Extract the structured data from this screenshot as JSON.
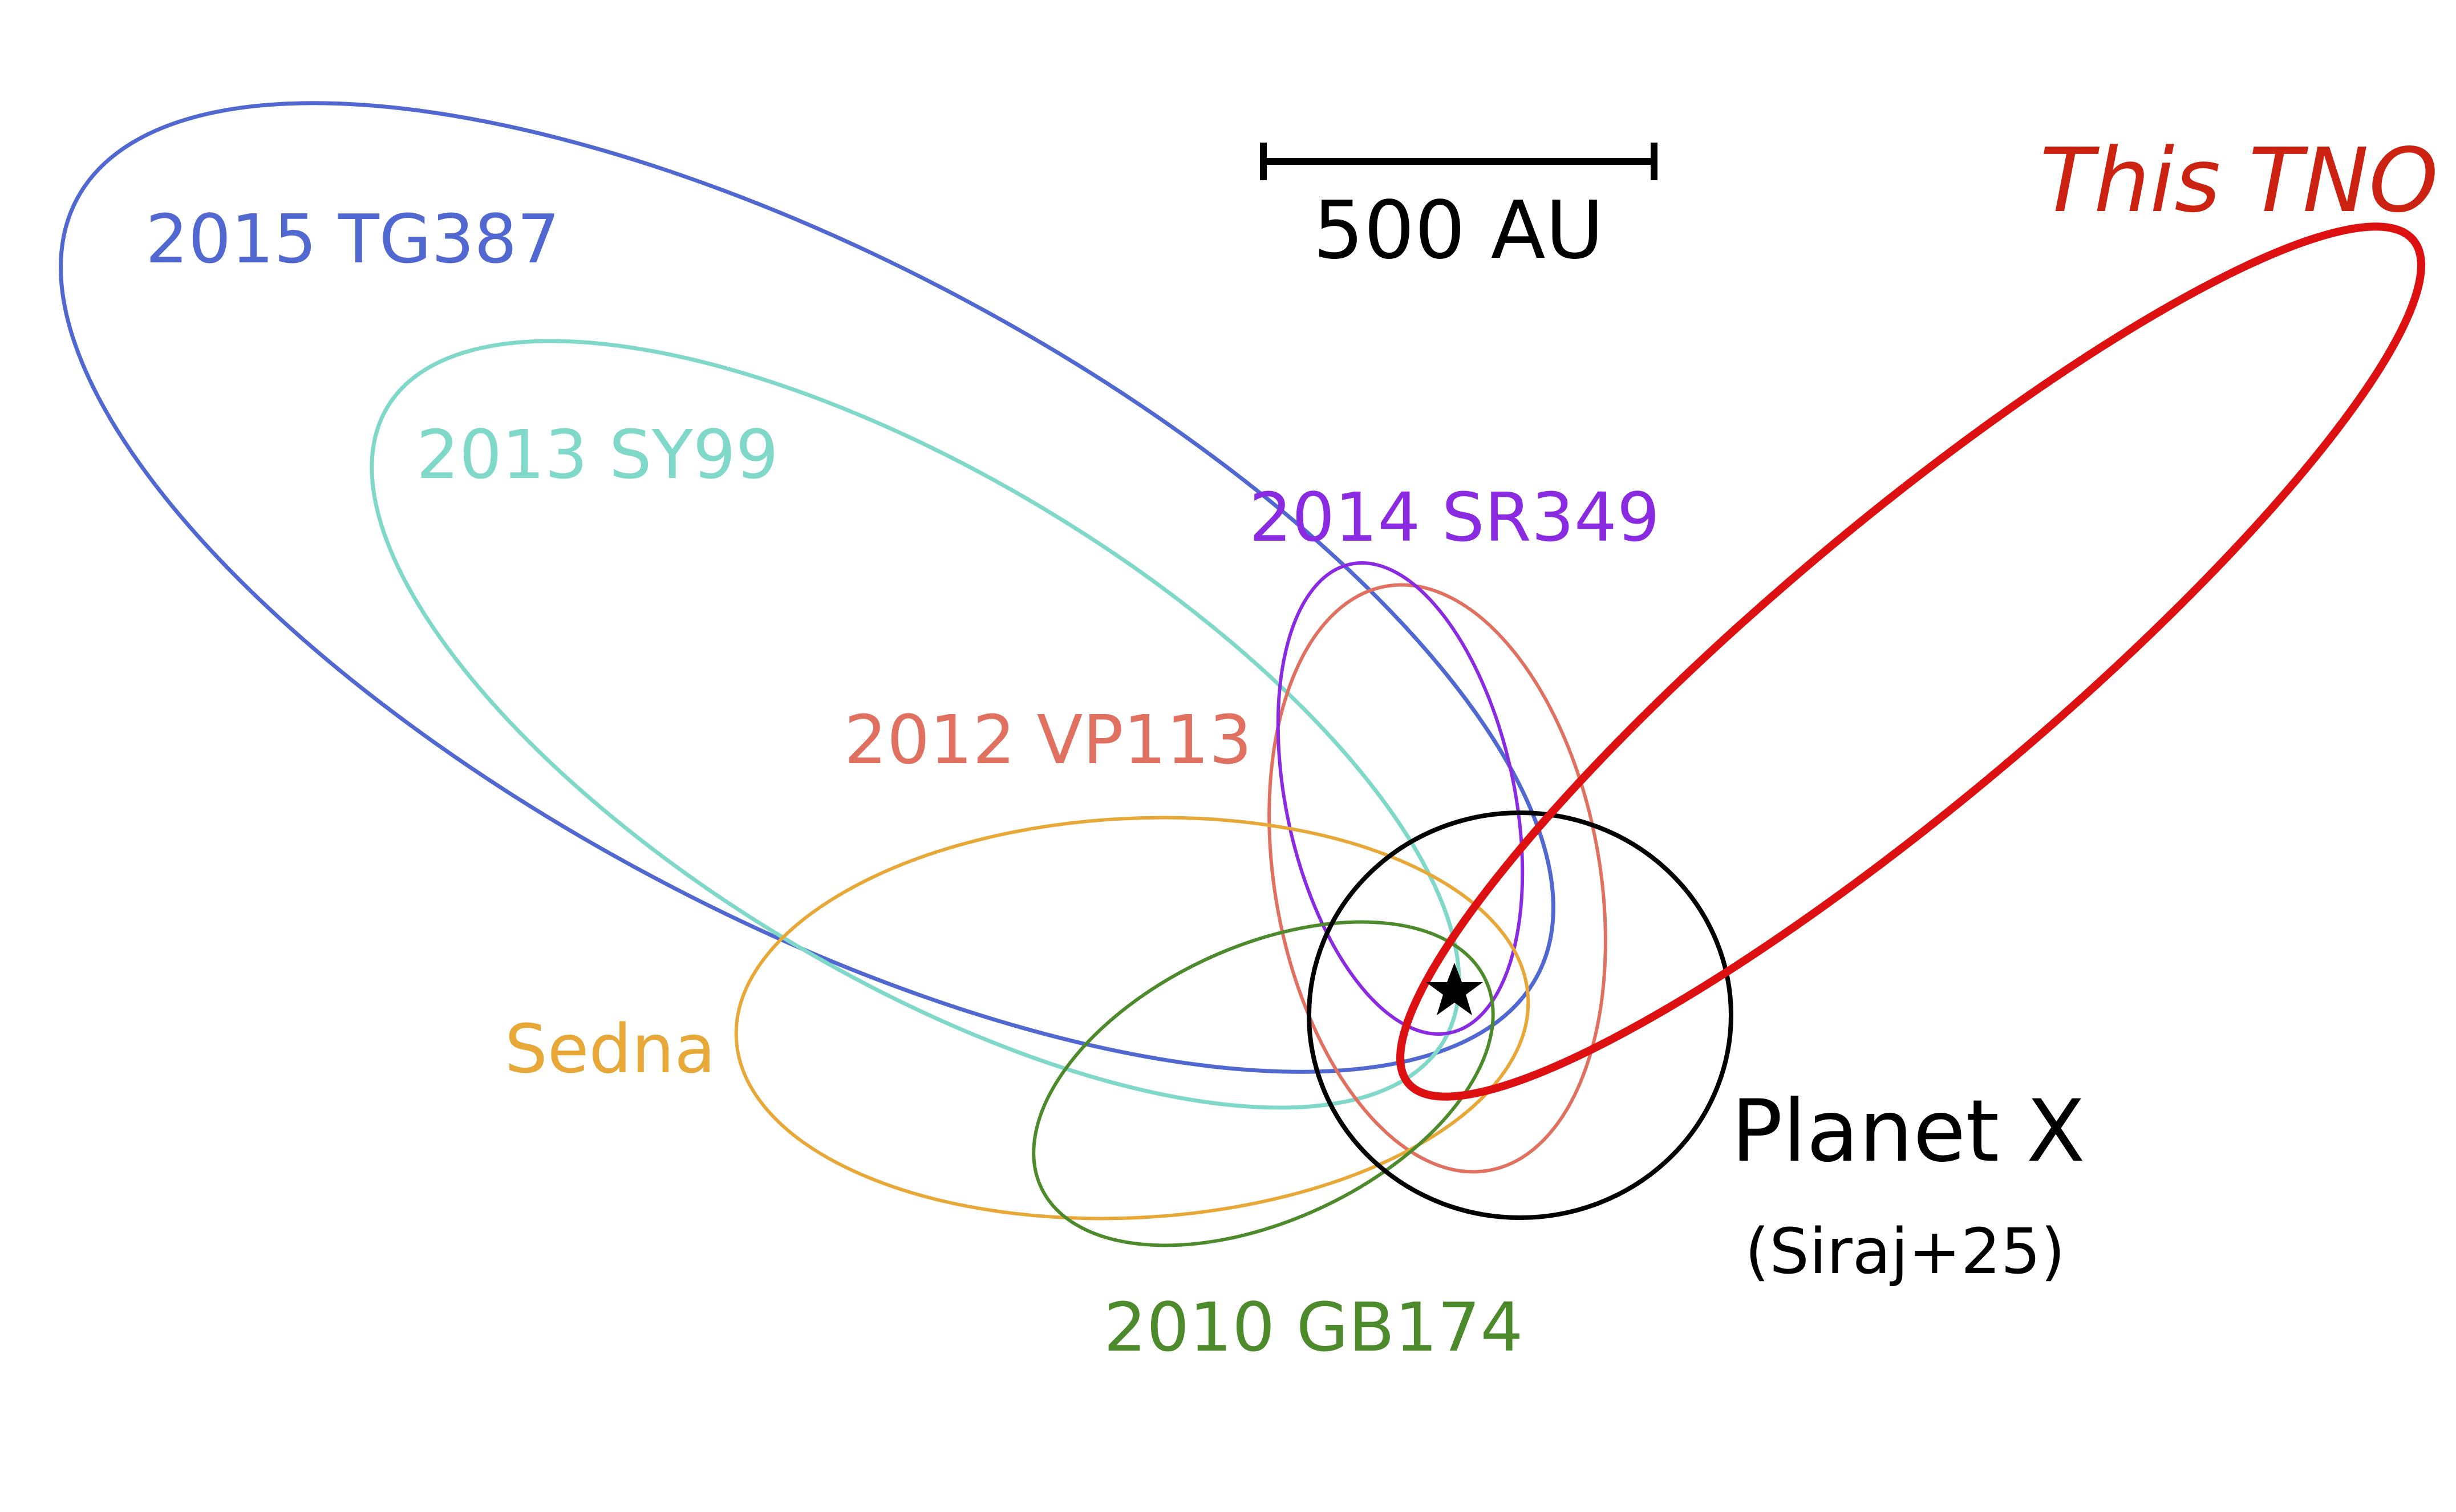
{
  "scale_bar": {
    "label": "500 AU"
  },
  "orbits": [
    {
      "key": "tg387",
      "label": "2015 TG387",
      "color": "#5068d0"
    },
    {
      "key": "sy99",
      "label": "2013 SY99",
      "color": "#7fd8c8"
    },
    {
      "key": "sr349",
      "label": "2014 SR349",
      "color": "#8a2be2"
    },
    {
      "key": "vp113",
      "label": "2012 VP113",
      "color": "#e07060"
    },
    {
      "key": "sedna",
      "label": "Sedna",
      "color": "#e8a838"
    },
    {
      "key": "gb174",
      "label": "2010 GB174",
      "color": "#4c8a2c"
    },
    {
      "key": "this_tno",
      "label": "This TNO",
      "color": "#dd1111"
    }
  ],
  "planet_x": {
    "label": "Planet X",
    "citation": "(Siraj+25)",
    "color": "#000000"
  },
  "sun": {
    "icon": "star-icon",
    "color": "#000000"
  }
}
